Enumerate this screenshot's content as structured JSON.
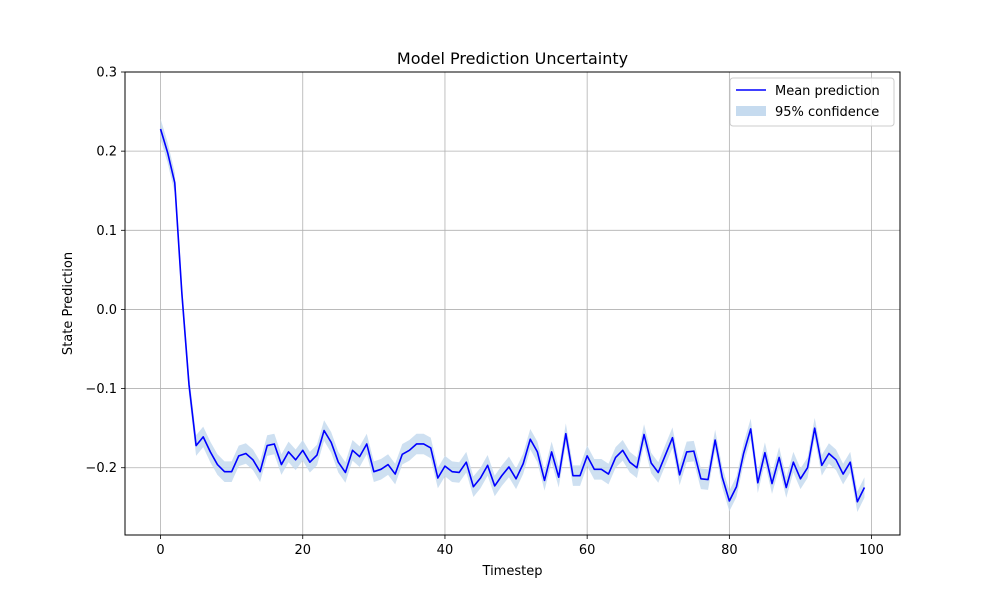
{
  "chart_data": {
    "type": "line",
    "title": "Model Prediction Uncertainty",
    "xlabel": "Timestep",
    "ylabel": "State Prediction",
    "xlim": [
      -5,
      104
    ],
    "ylim": [
      -0.285,
      0.3
    ],
    "xticks": [
      0,
      20,
      40,
      60,
      80,
      100
    ],
    "yticks": [
      -0.2,
      -0.1,
      0.0,
      0.1,
      0.2,
      0.3
    ],
    "xtick_labels": [
      "0",
      "20",
      "40",
      "60",
      "80",
      "100"
    ],
    "ytick_labels": [
      "−0.2",
      "−0.1",
      "0.0",
      "0.1",
      "0.2",
      "0.3"
    ],
    "grid": true,
    "legend_position": "top-right",
    "band_half_width": 0.013,
    "series": [
      {
        "name": "Mean prediction",
        "kind": "line",
        "color": "#0000ff",
        "values": [
          0.228,
          0.198,
          0.16,
          0.02,
          -0.095,
          -0.172,
          -0.161,
          -0.18,
          -0.196,
          -0.205,
          -0.205,
          -0.185,
          -0.182,
          -0.19,
          -0.205,
          -0.172,
          -0.17,
          -0.196,
          -0.18,
          -0.19,
          -0.178,
          -0.193,
          -0.184,
          -0.153,
          -0.168,
          -0.193,
          -0.206,
          -0.178,
          -0.186,
          -0.17,
          -0.205,
          -0.202,
          -0.196,
          -0.208,
          -0.183,
          -0.178,
          -0.17,
          -0.17,
          -0.175,
          -0.213,
          -0.198,
          -0.205,
          -0.206,
          -0.193,
          -0.224,
          -0.213,
          -0.197,
          -0.223,
          -0.21,
          -0.199,
          -0.214,
          -0.195,
          -0.164,
          -0.18,
          -0.216,
          -0.18,
          -0.212,
          -0.157,
          -0.21,
          -0.21,
          -0.185,
          -0.202,
          -0.202,
          -0.208,
          -0.187,
          -0.178,
          -0.193,
          -0.2,
          -0.158,
          -0.194,
          -0.206,
          -0.184,
          -0.162,
          -0.209,
          -0.18,
          -0.179,
          -0.214,
          -0.215,
          -0.165,
          -0.212,
          -0.242,
          -0.224,
          -0.182,
          -0.151,
          -0.219,
          -0.181,
          -0.22,
          -0.187,
          -0.225,
          -0.193,
          -0.214,
          -0.2,
          -0.15,
          -0.197,
          -0.182,
          -0.19,
          -0.208,
          -0.193,
          -0.243,
          -0.225
        ]
      },
      {
        "name": "95% confidence",
        "kind": "band",
        "color": "#c6dbef"
      }
    ]
  }
}
